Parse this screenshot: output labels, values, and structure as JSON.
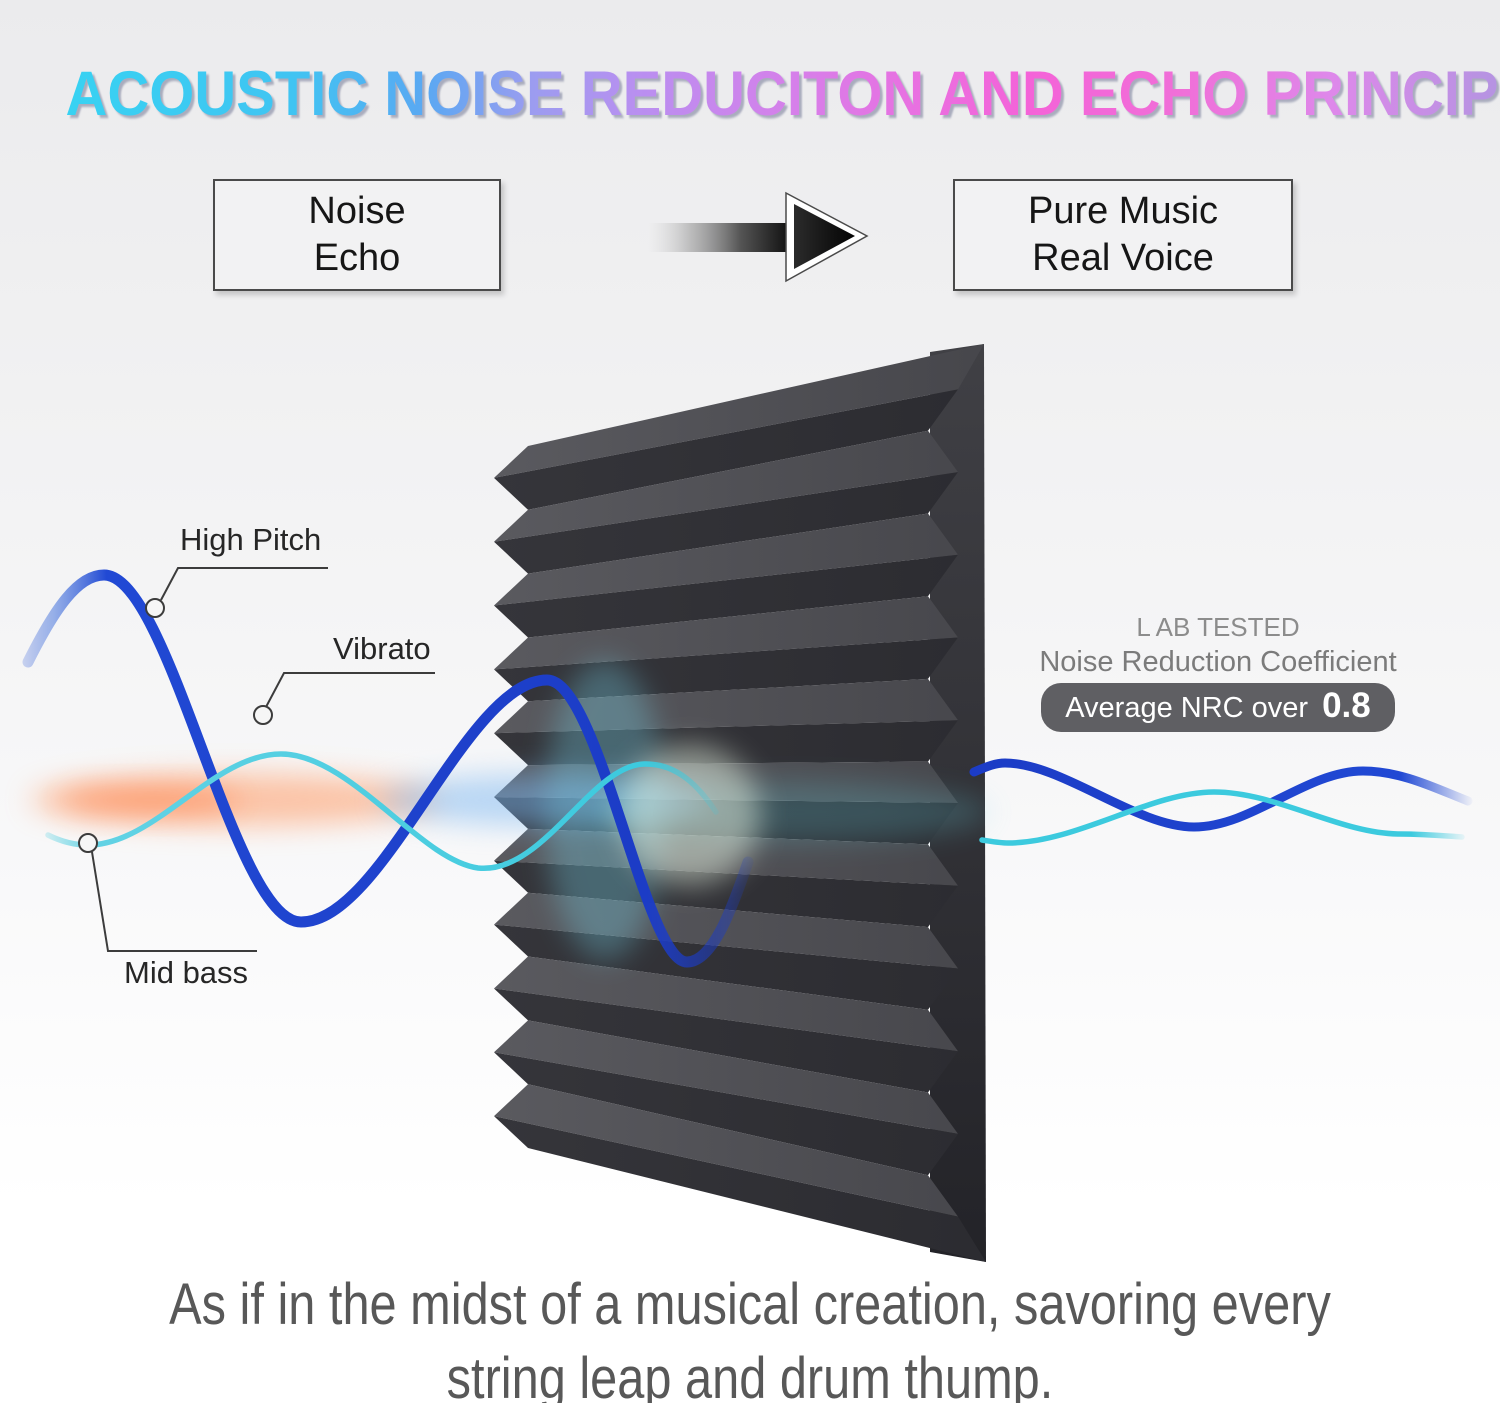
{
  "title": "ACOUSTIC NOISE REDUCITON AND ECHO PRINCIPLE",
  "flow": {
    "before_box": {
      "line1": "Noise",
      "line2": "Echo"
    },
    "arrow_icon": "right-arrow",
    "after_box": {
      "line1": "Pure Music",
      "line2": "Real Voice"
    }
  },
  "wave_labels": {
    "high_pitch": "High Pitch",
    "vibrato": "Vibrato",
    "mid_bass": "Mid bass"
  },
  "lab_result": {
    "line1": "L AB TESTED",
    "line2": "Noise Reduction Coefficient",
    "badge_text": "Average NRC over",
    "badge_value": "0.8"
  },
  "caption": {
    "line1": "As if in the midst of a musical creation, savoring every",
    "line2": "string leap and drum thump."
  },
  "colors": {
    "title_gradient": [
      "#38d2f2 0%",
      "#40c4f2 15%",
      "#5ba8f2 24%",
      "#9c9cf0 31%",
      "#b98ff0 38%",
      "#d580ea 48%",
      "#ea6fe0 57%",
      "#f463d8 64%",
      "#f06fd8 74%",
      "#de88ea 84%",
      "#b893e2 94%",
      "#ad96e0 100%"
    ],
    "wave_blue": "#2149d4",
    "wave_cyan": "#3ccade",
    "spike_orange": "#ff7e4e",
    "spike_blue": "#7cb9f2",
    "spike_cyan": "#3ed2f2",
    "foam_dark": "#39393d",
    "badge_bg": "#5f5f63"
  }
}
